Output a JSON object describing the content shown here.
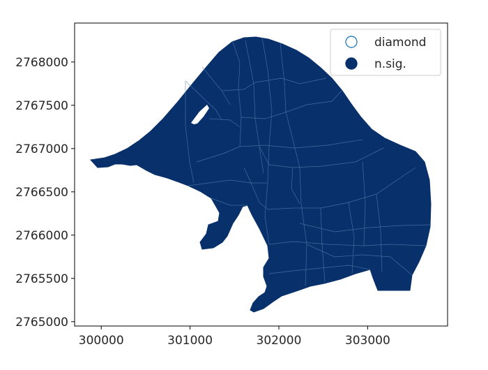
{
  "colors": {
    "n_sig_fill": "#08306b",
    "diamond_edge": "#3182bd",
    "boundary_lines": "#5a7fb0",
    "axes_frame": "#000000",
    "background": "#ffffff"
  },
  "x_axis": {
    "range": [
      299700,
      303900
    ],
    "ticks": [
      {
        "value": 300000,
        "label": "300000"
      },
      {
        "value": 301000,
        "label": "301000"
      },
      {
        "value": 302000,
        "label": "302000"
      },
      {
        "value": 303000,
        "label": "303000"
      }
    ]
  },
  "y_axis": {
    "range": [
      2764950,
      2768450
    ],
    "ticks": [
      {
        "value": 2765000,
        "label": "2765000"
      },
      {
        "value": 2765500,
        "label": "2765500"
      },
      {
        "value": 2766000,
        "label": "2766000"
      },
      {
        "value": 2766500,
        "label": "2766500"
      },
      {
        "value": 2767000,
        "label": "2767000"
      },
      {
        "value": 2767500,
        "label": "2767500"
      },
      {
        "value": 2768000,
        "label": "2768000"
      }
    ]
  },
  "legend": {
    "placement": "top-right",
    "entries": [
      {
        "label": "diamond",
        "marker": "hollow-circle"
      },
      {
        "label": "n.sig.",
        "marker": "filled-circle"
      }
    ]
  }
}
